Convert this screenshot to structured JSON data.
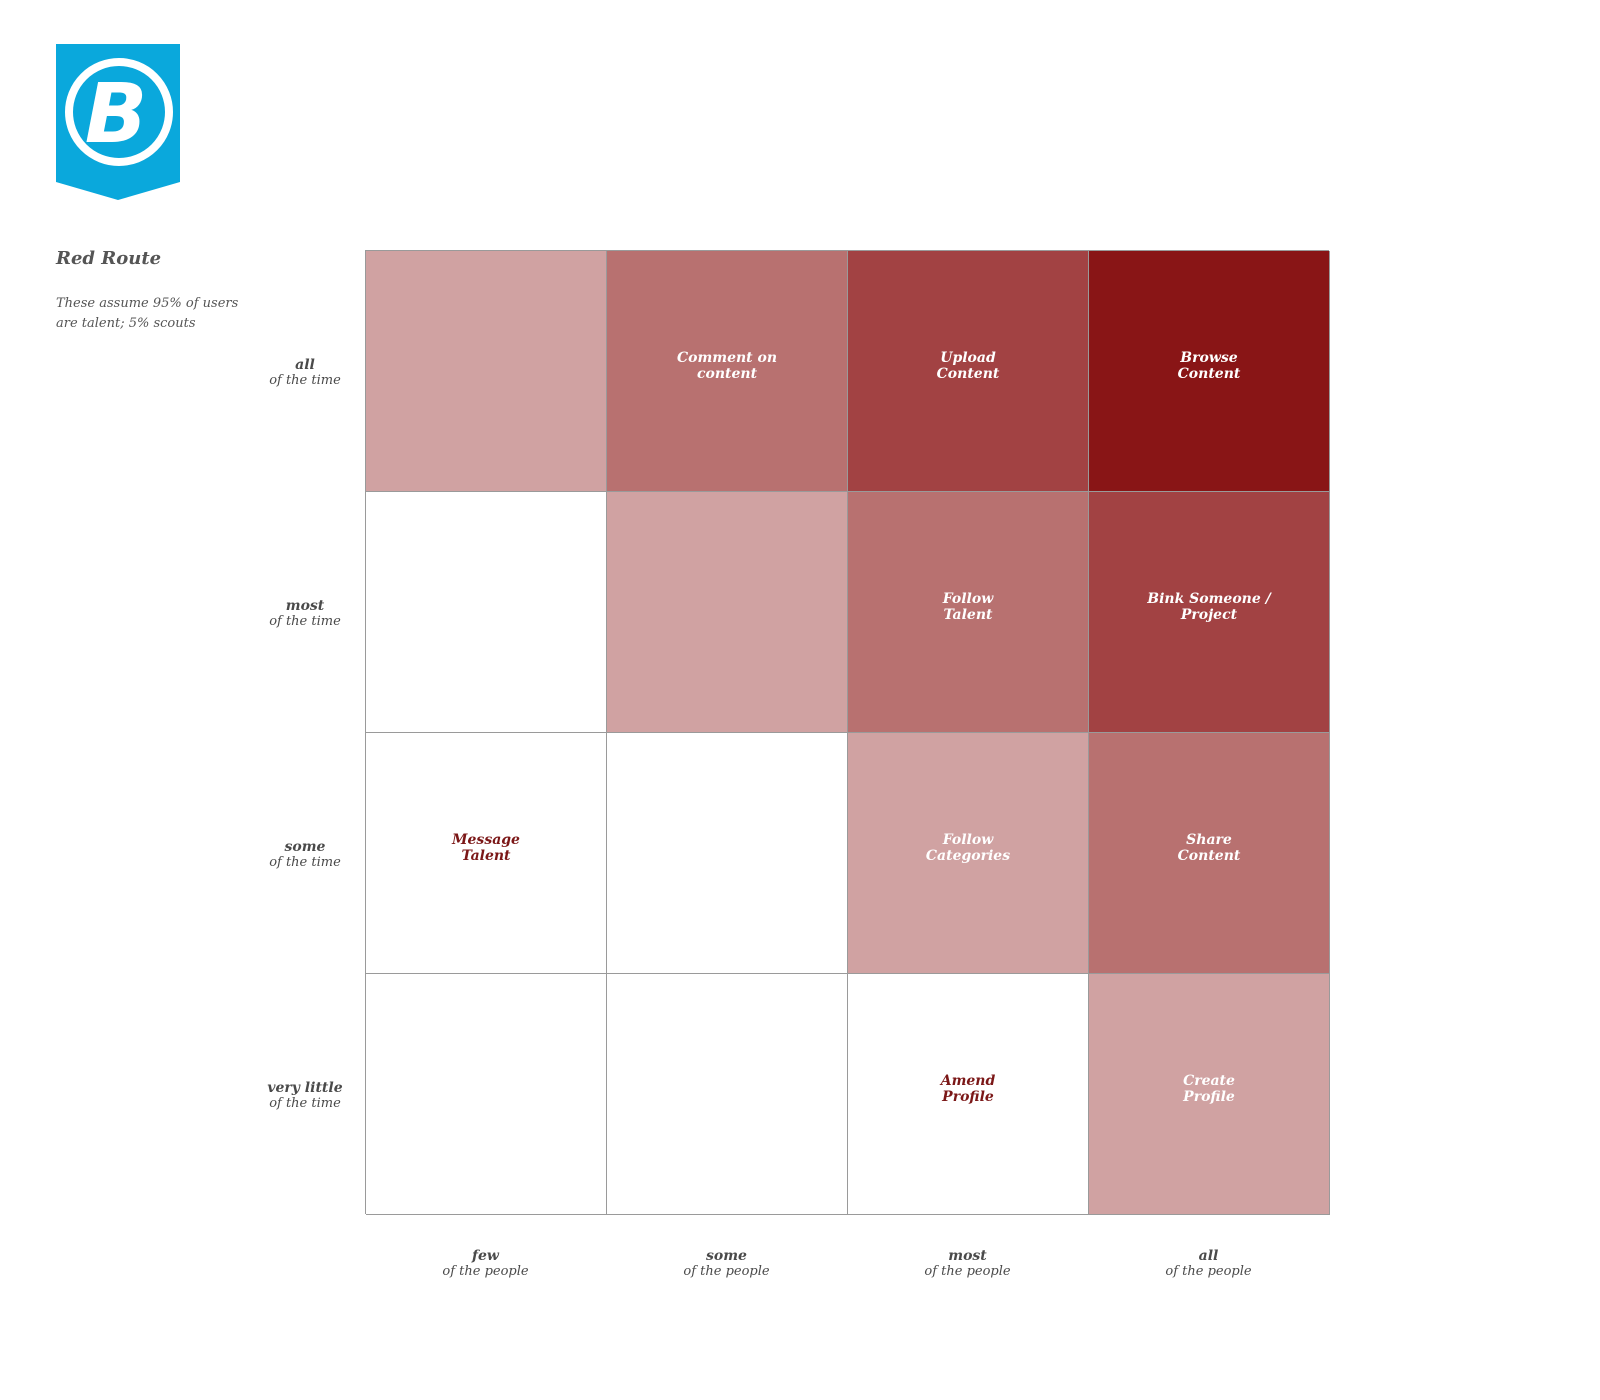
{
  "brand": {
    "logo_color": "#0aa8dc",
    "logo_glyph": "B"
  },
  "header": {
    "title": "Red Route",
    "note": "These assume 95% of users\nare talent; 5% scouts"
  },
  "colors": {
    "level_0": "#ffffff",
    "level_1": "#d0a2a2",
    "level_2": "#b87170",
    "level_3": "#a24243",
    "level_4": "#891516",
    "label_on_light": "#7b1717",
    "label_on_dark": "#ffffff",
    "gridline": "#9a9a9a"
  },
  "row_axis": [
    {
      "strong": "all",
      "sub": "of the time"
    },
    {
      "strong": "most",
      "sub": "of the time"
    },
    {
      "strong": "some",
      "sub": "of the time"
    },
    {
      "strong": "very little",
      "sub": "of the time"
    }
  ],
  "col_axis": [
    {
      "strong": "few",
      "sub": "of the people"
    },
    {
      "strong": "some",
      "sub": "of the people"
    },
    {
      "strong": "most",
      "sub": "of the people"
    },
    {
      "strong": "all",
      "sub": "of the people"
    }
  ],
  "matrix": [
    [
      {
        "label": "",
        "level": 1
      },
      {
        "label": "Comment on\ncontent",
        "level": 2
      },
      {
        "label": "Upload\nContent",
        "level": 3
      },
      {
        "label": "Browse\nContent",
        "level": 4
      }
    ],
    [
      {
        "label": "",
        "level": 0
      },
      {
        "label": "",
        "level": 1
      },
      {
        "label": "Follow\nTalent",
        "level": 2
      },
      {
        "label": "Bink Someone /\nProject",
        "level": 3
      }
    ],
    [
      {
        "label": "Message\nTalent",
        "level": 0
      },
      {
        "label": "",
        "level": 0
      },
      {
        "label": "Follow\nCategories",
        "level": 1
      },
      {
        "label": "Share\nContent",
        "level": 2
      }
    ],
    [
      {
        "label": "",
        "level": 0
      },
      {
        "label": "",
        "level": 0
      },
      {
        "label": "Amend\nProfile",
        "level": 0
      },
      {
        "label": "Create\nProfile",
        "level": 1
      }
    ]
  ]
}
